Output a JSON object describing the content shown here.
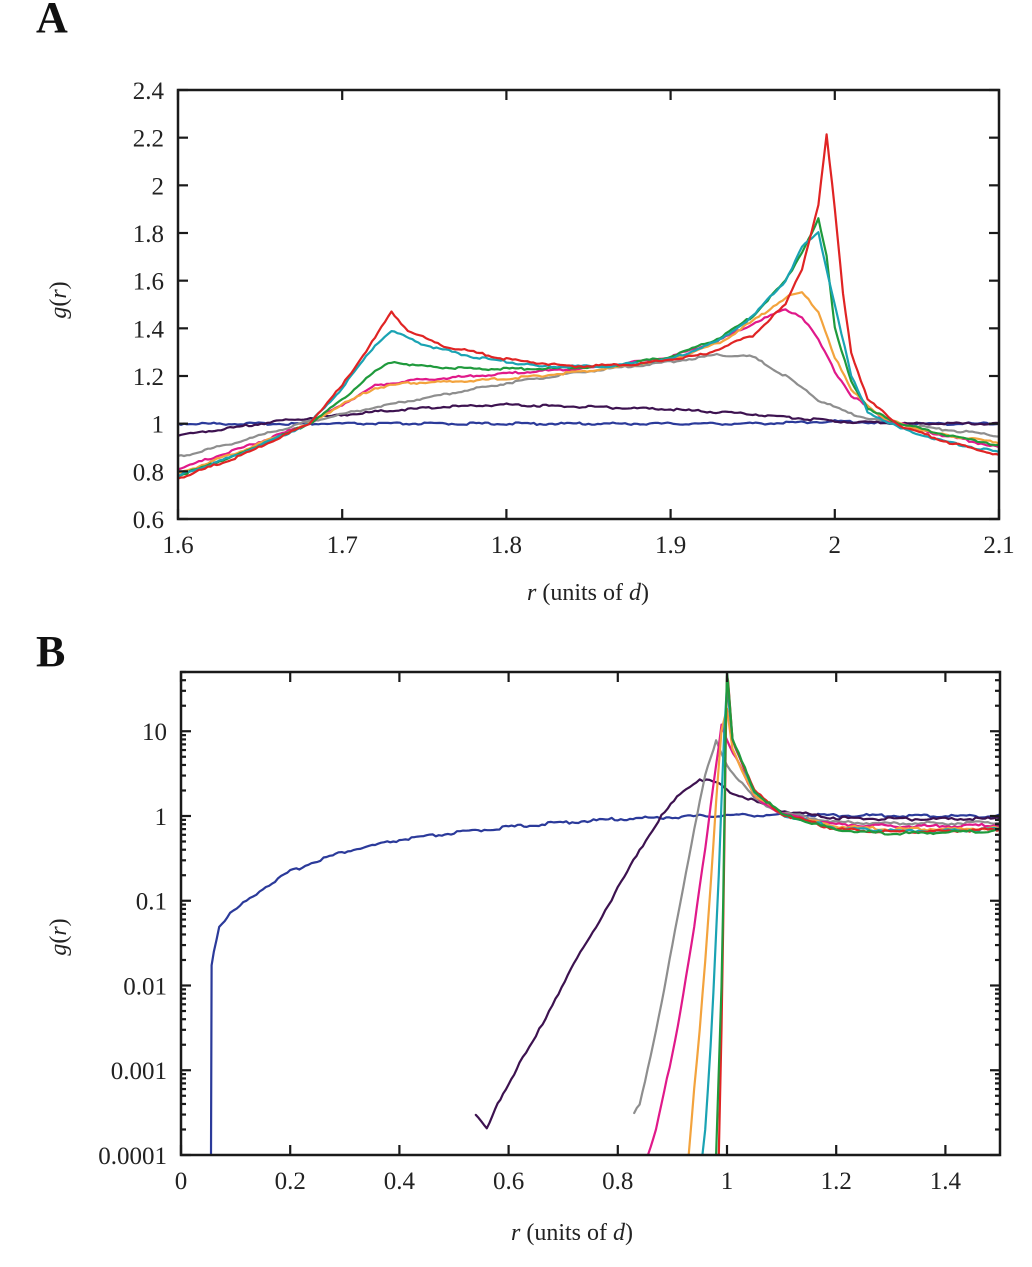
{
  "chart_data": [
    {
      "panel": "A",
      "type": "line",
      "title": "",
      "xlabel_var": "r",
      "xlabel_rest": " (units of ",
      "xlabel_unit": "d",
      "xlabel_close": ")",
      "ylabel_var": "g",
      "ylabel_arg": "r",
      "xlim": [
        1.6,
        2.1
      ],
      "ylim": [
        0.6,
        2.4
      ],
      "yscale": "linear",
      "xticks": [
        1.6,
        1.7,
        1.8,
        1.9,
        2.0,
        2.1
      ],
      "xtick_labels": [
        "1.6",
        "1.7",
        "1.8",
        "1.9",
        "2",
        "2.1"
      ],
      "yticks": [
        0.6,
        0.8,
        1.0,
        1.2,
        1.4,
        1.6,
        1.8,
        2.0,
        2.2,
        2.4
      ],
      "ytick_labels": [
        "0.6",
        "0.8",
        "1",
        "1.2",
        "1.4",
        "1.6",
        "1.8",
        "2",
        "2.2",
        "2.4"
      ],
      "grid": false,
      "legend": "none",
      "series": [
        {
          "name": "blue",
          "color": "#2b3a9a",
          "x": [
            1.6,
            1.62,
            1.64,
            1.66,
            1.68,
            1.7,
            1.75,
            1.8,
            1.85,
            1.9,
            1.95,
            2.0,
            2.05,
            2.1
          ],
          "y": [
            1.0,
            1.0,
            1.0,
            1.0,
            1.0,
            1.0,
            1.0,
            1.0,
            1.0,
            1.0,
            1.0,
            1.01,
            1.0,
            1.0
          ]
        },
        {
          "name": "dark-purple",
          "color": "#3d1250",
          "x": [
            1.6,
            1.63,
            1.66,
            1.69,
            1.72,
            1.76,
            1.8,
            1.85,
            1.9,
            1.95,
            2.0,
            2.05,
            2.1
          ],
          "y": [
            0.95,
            0.98,
            1.01,
            1.03,
            1.05,
            1.07,
            1.08,
            1.07,
            1.06,
            1.04,
            1.01,
            1.0,
            1.0
          ]
        },
        {
          "name": "gray",
          "color": "#8e8e8e",
          "x": [
            1.6,
            1.64,
            1.68,
            1.72,
            1.76,
            1.8,
            1.85,
            1.9,
            1.93,
            1.95,
            1.97,
            1.99,
            2.01,
            2.03,
            2.06,
            2.1
          ],
          "y": [
            0.86,
            0.93,
            1.01,
            1.07,
            1.12,
            1.17,
            1.22,
            1.26,
            1.29,
            1.28,
            1.2,
            1.1,
            1.04,
            1.01,
            0.98,
            0.95
          ]
        },
        {
          "name": "magenta",
          "color": "#e0198a",
          "x": [
            1.6,
            1.64,
            1.68,
            1.7,
            1.72,
            1.74,
            1.78,
            1.82,
            1.86,
            1.9,
            1.93,
            1.95,
            1.97,
            1.98,
            1.99,
            2.0,
            2.01,
            2.03,
            2.06,
            2.1
          ],
          "y": [
            0.81,
            0.9,
            1.0,
            1.08,
            1.16,
            1.18,
            1.2,
            1.22,
            1.24,
            1.28,
            1.35,
            1.42,
            1.48,
            1.45,
            1.35,
            1.22,
            1.12,
            1.02,
            0.96,
            0.9
          ]
        },
        {
          "name": "orange",
          "color": "#f3a33d",
          "x": [
            1.6,
            1.64,
            1.68,
            1.7,
            1.72,
            1.74,
            1.78,
            1.82,
            1.86,
            1.9,
            1.93,
            1.95,
            1.97,
            1.98,
            1.99,
            2.0,
            2.01,
            2.03,
            2.06,
            2.1
          ],
          "y": [
            0.79,
            0.89,
            1.0,
            1.08,
            1.15,
            1.17,
            1.18,
            1.2,
            1.23,
            1.27,
            1.34,
            1.43,
            1.53,
            1.55,
            1.47,
            1.28,
            1.14,
            1.02,
            0.96,
            0.92
          ]
        },
        {
          "name": "green",
          "color": "#1f9a3c",
          "x": [
            1.6,
            1.64,
            1.68,
            1.7,
            1.72,
            1.73,
            1.75,
            1.78,
            1.82,
            1.86,
            1.9,
            1.93,
            1.95,
            1.97,
            1.98,
            1.99,
            1.995,
            2.0,
            2.01,
            2.02,
            2.04,
            2.07,
            2.1
          ],
          "y": [
            0.78,
            0.88,
            1.0,
            1.1,
            1.22,
            1.26,
            1.24,
            1.23,
            1.23,
            1.24,
            1.28,
            1.36,
            1.45,
            1.6,
            1.72,
            1.86,
            1.7,
            1.4,
            1.18,
            1.06,
            1.0,
            0.95,
            0.91
          ]
        },
        {
          "name": "teal",
          "color": "#1aa3b3",
          "x": [
            1.6,
            1.64,
            1.68,
            1.7,
            1.72,
            1.73,
            1.75,
            1.78,
            1.82,
            1.86,
            1.9,
            1.93,
            1.95,
            1.97,
            1.98,
            1.99,
            2.0,
            2.01,
            2.02,
            2.04,
            2.07,
            2.1
          ],
          "y": [
            0.78,
            0.88,
            1.0,
            1.15,
            1.33,
            1.39,
            1.33,
            1.28,
            1.24,
            1.24,
            1.27,
            1.35,
            1.45,
            1.6,
            1.74,
            1.8,
            1.5,
            1.2,
            1.05,
            0.98,
            0.92,
            0.88
          ]
        },
        {
          "name": "red",
          "color": "#e02424",
          "x": [
            1.6,
            1.64,
            1.68,
            1.7,
            1.72,
            1.73,
            1.74,
            1.76,
            1.8,
            1.84,
            1.88,
            1.92,
            1.95,
            1.97,
            1.98,
            1.99,
            1.995,
            2.0,
            2.005,
            2.01,
            2.02,
            2.04,
            2.07,
            2.1
          ],
          "y": [
            0.77,
            0.87,
            1.0,
            1.16,
            1.36,
            1.47,
            1.39,
            1.33,
            1.27,
            1.24,
            1.25,
            1.29,
            1.37,
            1.5,
            1.65,
            1.92,
            2.21,
            1.9,
            1.55,
            1.3,
            1.1,
            0.99,
            0.92,
            0.87
          ]
        }
      ]
    },
    {
      "panel": "B",
      "type": "line",
      "title": "",
      "xlabel_var": "r",
      "xlabel_rest": " (units of ",
      "xlabel_unit": "d",
      "xlabel_close": ")",
      "ylabel_var": "g",
      "ylabel_arg": "r",
      "xlim": [
        0,
        1.5
      ],
      "ylim": [
        0.0001,
        50
      ],
      "yscale": "log",
      "xticks": [
        0,
        0.2,
        0.4,
        0.6,
        0.8,
        1.0,
        1.2,
        1.4
      ],
      "xtick_labels": [
        "0",
        "0.2",
        "0.4",
        "0.6",
        "0.8",
        "1",
        "1.2",
        "1.4"
      ],
      "yticks": [
        0.0001,
        0.001,
        0.01,
        0.1,
        1,
        10
      ],
      "ytick_labels": [
        "0.0001",
        "0.001",
        "0.01",
        "0.1",
        "1",
        "10"
      ],
      "grid": false,
      "legend": "none",
      "series": [
        {
          "name": "blue",
          "color": "#2b3a9a",
          "x": [
            0.055,
            0.056,
            0.06,
            0.07,
            0.09,
            0.12,
            0.15,
            0.2,
            0.25,
            0.3,
            0.4,
            0.5,
            0.6,
            0.7,
            0.8,
            0.9,
            1.0,
            1.1,
            1.2,
            1.3,
            1.4,
            1.5
          ],
          "y": [
            0.0001,
            0.018,
            0.025,
            0.05,
            0.07,
            0.1,
            0.14,
            0.22,
            0.3,
            0.38,
            0.52,
            0.63,
            0.74,
            0.84,
            0.92,
            0.97,
            1.02,
            1.03,
            1.02,
            1.01,
            1.0,
            1.0
          ]
        },
        {
          "name": "dark-purple",
          "color": "#3d1250",
          "x": [
            0.54,
            0.56,
            0.58,
            0.6,
            0.62,
            0.65,
            0.68,
            0.72,
            0.76,
            0.8,
            0.84,
            0.88,
            0.92,
            0.95,
            0.98,
            1.0,
            1.05,
            1.1,
            1.2,
            1.3,
            1.4,
            1.5
          ],
          "y": [
            0.0003,
            0.0002,
            0.0004,
            0.0007,
            0.0012,
            0.0025,
            0.006,
            0.018,
            0.05,
            0.14,
            0.4,
            1.0,
            2.0,
            2.7,
            2.5,
            2.0,
            1.5,
            1.15,
            0.95,
            0.92,
            0.92,
            0.93
          ]
        },
        {
          "name": "gray",
          "color": "#8e8e8e",
          "x": [
            0.83,
            0.84,
            0.86,
            0.88,
            0.9,
            0.92,
            0.94,
            0.96,
            0.98,
            1.0,
            1.05,
            1.1,
            1.2,
            1.3,
            1.4,
            1.5
          ],
          "y": [
            0.0003,
            0.0004,
            0.0015,
            0.006,
            0.03,
            0.15,
            0.7,
            3.0,
            7.5,
            4.0,
            1.6,
            1.1,
            0.85,
            0.82,
            0.82,
            0.84
          ]
        },
        {
          "name": "magenta",
          "color": "#e0198a",
          "x": [
            0.855,
            0.87,
            0.88,
            0.9,
            0.92,
            0.94,
            0.96,
            0.98,
            0.99,
            1.0,
            1.05,
            1.1,
            1.2,
            1.3,
            1.4,
            1.5
          ],
          "y": [
            0.0001,
            0.0002,
            0.0004,
            0.0015,
            0.008,
            0.05,
            0.4,
            4.0,
            12.0,
            8.0,
            1.7,
            1.05,
            0.8,
            0.76,
            0.76,
            0.78
          ]
        },
        {
          "name": "orange",
          "color": "#f3a33d",
          "x": [
            0.93,
            0.94,
            0.95,
            0.96,
            0.97,
            0.98,
            0.99,
            1.0,
            1.01,
            1.05,
            1.1,
            1.2,
            1.3,
            1.4,
            1.5
          ],
          "y": [
            0.0001,
            0.0006,
            0.003,
            0.02,
            0.15,
            1.5,
            10.0,
            18.0,
            6.0,
            1.8,
            1.05,
            0.75,
            0.7,
            0.7,
            0.72
          ]
        },
        {
          "name": "teal",
          "color": "#1aa3b3",
          "x": [
            0.955,
            0.96,
            0.965,
            0.97,
            0.975,
            0.98,
            0.985,
            0.99,
            0.995,
            1.0,
            1.01,
            1.05,
            1.1,
            1.2,
            1.3,
            1.4,
            1.5
          ],
          "y": [
            0.0001,
            0.0002,
            0.0006,
            0.002,
            0.008,
            0.04,
            0.2,
            1.5,
            10.0,
            35.0,
            8.0,
            1.9,
            1.05,
            0.72,
            0.67,
            0.67,
            0.7
          ]
        },
        {
          "name": "red",
          "color": "#e02424",
          "x": [
            0.985,
            0.99,
            0.993,
            0.996,
            0.998,
            1.0,
            1.002,
            1.01,
            1.05,
            1.1,
            1.2,
            1.3,
            1.4,
            1.5
          ],
          "y": [
            0.0001,
            0.003,
            0.05,
            1.0,
            10.0,
            45.0,
            40.0,
            8.0,
            2.0,
            1.05,
            0.7,
            0.65,
            0.66,
            0.7
          ]
        },
        {
          "name": "green",
          "color": "#1f9a3c",
          "x": [
            0.98,
            0.985,
            0.99,
            0.993,
            0.996,
            0.998,
            1.0,
            1.003,
            1.01,
            1.05,
            1.1,
            1.2,
            1.3,
            1.4,
            1.5
          ],
          "y": [
            0.0001,
            0.001,
            0.01,
            0.1,
            2.0,
            15.0,
            50.0,
            30.0,
            8.0,
            2.0,
            1.05,
            0.68,
            0.62,
            0.64,
            0.68
          ]
        }
      ]
    }
  ],
  "panels": {
    "A": {
      "label": "A"
    },
    "B": {
      "label": "B"
    }
  }
}
